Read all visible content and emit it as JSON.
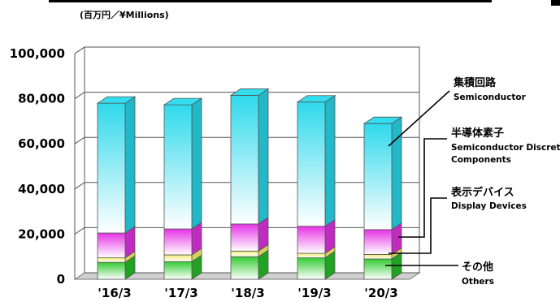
{
  "chart_data": {
    "type": "bar",
    "stacked": true,
    "unit_label": "(百万円／¥Millions)",
    "categories": [
      "'16/3",
      "'17/3",
      "'18/3",
      "'19/3",
      "'20/3"
    ],
    "ylim": [
      0,
      100000
    ],
    "yticks": [
      "0",
      "20,000",
      "40,000",
      "60,000",
      "80,000",
      "100,000"
    ],
    "grid": true,
    "legend_placement": "right",
    "series": [
      {
        "name": "その他",
        "name_en": "Others",
        "values": [
          7500,
          7800,
          10000,
          9500,
          9000
        ],
        "color": "#33cc33"
      },
      {
        "name": "表示デバイス",
        "name_en": "Display Devices",
        "values": [
          2000,
          3000,
          2500,
          2000,
          2000
        ],
        "color": "#f2ee7a"
      },
      {
        "name": "半導体素子",
        "name_en": "Semiconductor Discrete Components",
        "values": [
          11000,
          11500,
          12000,
          12000,
          11000
        ],
        "color": "#e838e8"
      },
      {
        "name": "集積回路",
        "name_en": "Semiconductor",
        "values": [
          57500,
          55000,
          57000,
          55000,
          47000
        ],
        "color": "#33ddee"
      }
    ]
  }
}
